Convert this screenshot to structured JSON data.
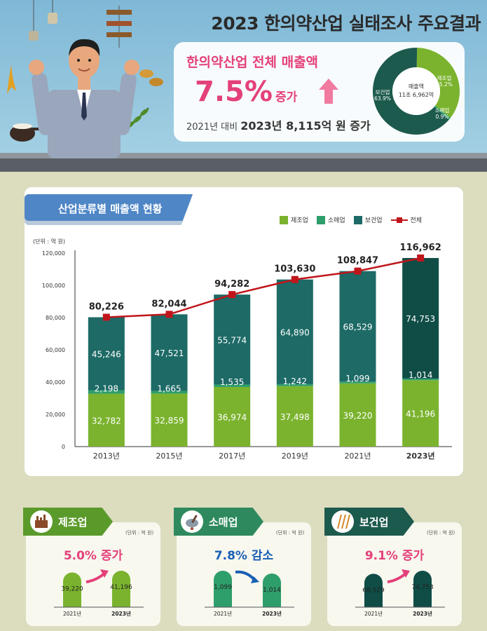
{
  "header": {
    "title": "2023 한의약산업 실태조사 주요결과"
  },
  "summary": {
    "label": "한의약산업 전체 매출액",
    "pct": "7.5%",
    "pct_suffix": "증가",
    "detail_prefix": "2021년 대비",
    "detail_value": "2023년 8,115억 원 증가",
    "colors": {
      "accent": "#e4407a"
    }
  },
  "donut": {
    "center_line1": "매출액",
    "center_line2": "11조 6,962억",
    "slices": [
      {
        "name": "제조업",
        "pct_label": "35.2%",
        "value": 35.2,
        "color": "#7bb32e"
      },
      {
        "name": "소매업",
        "pct_label": "0.9%",
        "value": 0.9,
        "color": "#2e9e6b"
      },
      {
        "name": "보건업",
        "pct_label": "63.9%",
        "value": 63.9,
        "color": "#1d5a4e"
      }
    ]
  },
  "chart_data": {
    "type": "bar",
    "stacked": true,
    "title": "산업분류별 매출액 현황",
    "unit_label": "(단위 : 억 원)",
    "categories": [
      "2013년",
      "2015년",
      "2017년",
      "2019년",
      "2021년",
      "2023년"
    ],
    "series": [
      {
        "name": "제조업",
        "color": "#7bb32e",
        "values": [
          32782,
          32859,
          36974,
          37498,
          39220,
          41196
        ],
        "labels": [
          "32,782",
          "32,859",
          "36,974",
          "37,498",
          "39,220",
          "41,196"
        ]
      },
      {
        "name": "소매업",
        "color": "#2e9e6b",
        "values": [
          2198,
          1665,
          1535,
          1242,
          1099,
          1014
        ],
        "labels": [
          "2,198",
          "1,665",
          "1,535",
          "1,242",
          "1,099",
          "1,014"
        ]
      },
      {
        "name": "보건업",
        "color": "#1d6a66",
        "values": [
          45246,
          47521,
          55774,
          64890,
          68529,
          74753
        ],
        "labels": [
          "45,246",
          "47,521",
          "55,774",
          "64,890",
          "68,529",
          "74,753"
        ]
      }
    ],
    "total": {
      "name": "전체",
      "color": "#c0161b",
      "values": [
        80226,
        82044,
        94282,
        103630,
        108847,
        116962
      ],
      "labels": [
        "80,226",
        "82,044",
        "94,282",
        "103,630",
        "108,847",
        "116,962"
      ]
    },
    "ylim": [
      0,
      120000
    ],
    "yticks": [
      0,
      20000,
      40000,
      60000,
      80000,
      100000,
      120000
    ],
    "ytick_labels": [
      "0",
      "20,000",
      "40,000",
      "60,000",
      "80,000",
      "100,000",
      "120,000"
    ],
    "legend_position": "top-right",
    "last_bar_color": "#0f4d46"
  },
  "mini_panels": [
    {
      "name": "제조업",
      "unit": "(단위 : 억 원)",
      "headline": "5.0% 증가",
      "headline_color": "#e4407a",
      "tab_color": "#5a9a2a",
      "bar_color": "#7bb32e",
      "years": [
        "2021년",
        "2023년"
      ],
      "values": [
        39220,
        41196
      ],
      "labels": [
        "39,220",
        "41,196"
      ]
    },
    {
      "name": "소매업",
      "unit": "(단위 : 억 원)",
      "headline": "7.8% 감소",
      "headline_color": "#1a5fb4",
      "tab_color": "#2e8a5e",
      "bar_color": "#2e9e6b",
      "years": [
        "2021년",
        "2023년"
      ],
      "values": [
        1099,
        1014
      ],
      "labels": [
        "1,099",
        "1,014"
      ]
    },
    {
      "name": "보건업",
      "unit": "(단위 : 억 원)",
      "headline": "9.1% 증가",
      "headline_color": "#e4407a",
      "tab_color": "#1d5a4e",
      "bar_color": "#0f4d46",
      "years": [
        "2021년",
        "2023년"
      ],
      "values": [
        68529,
        74753
      ],
      "labels": [
        "68,529",
        "74,753"
      ]
    }
  ]
}
